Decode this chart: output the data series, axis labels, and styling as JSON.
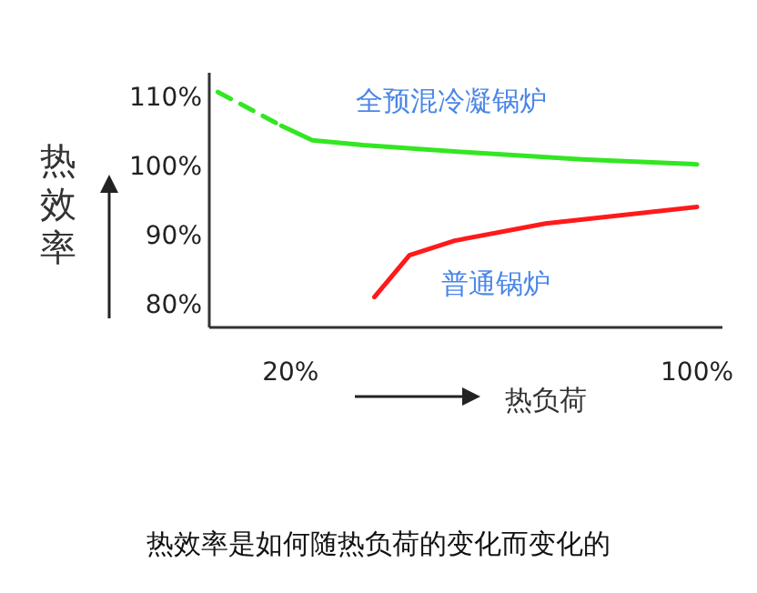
{
  "chart_data": {
    "type": "line",
    "title": "热效率是如何随热负荷的变化而变化的",
    "xlabel": "热负荷",
    "ylabel": "热效率",
    "xlim": [
      4,
      105
    ],
    "ylim": [
      76.5,
      113.5
    ],
    "xticks": [
      {
        "value": 20,
        "label": "20%"
      },
      {
        "value": 100,
        "label": "100%"
      }
    ],
    "yticks": [
      {
        "value": 80,
        "label": "80%"
      },
      {
        "value": 90,
        "label": "90%"
      },
      {
        "value": 100,
        "label": "100%"
      },
      {
        "value": 110,
        "label": "110%"
      }
    ],
    "grid": false,
    "legend": false,
    "series": [
      {
        "color": "#33e622",
        "line_style": "dashed",
        "x": [
          5.7,
          18.2
        ],
        "values": [
          110.7,
          105.8
        ]
      },
      {
        "name": "全预混冷凝锅炉",
        "color": "#33e622",
        "line_style": "solid",
        "x": [
          18.2,
          24.3,
          34.3,
          55.8,
          77.4,
          100
        ],
        "values": [
          105.8,
          103.7,
          103,
          101.9,
          100.9,
          100.2
        ]
      },
      {
        "name": "普通锅炉",
        "color": "#ff1a1a",
        "line_style": "solid",
        "x": [
          36.5,
          43.4,
          52.3,
          70.2,
          100
        ],
        "values": [
          80.9,
          87,
          89.1,
          91.6,
          94
        ]
      }
    ]
  }
}
